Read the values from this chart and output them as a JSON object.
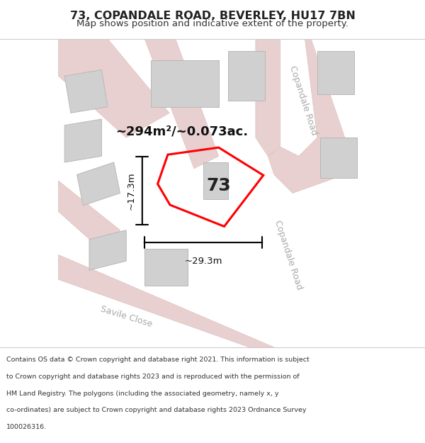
{
  "title": "73, COPANDALE ROAD, BEVERLEY, HU17 7BN",
  "subtitle": "Map shows position and indicative extent of the property.",
  "footer_lines": [
    "Contains OS data © Crown copyright and database right 2021. This information is subject",
    "to Crown copyright and database rights 2023 and is reproduced with the permission of",
    "HM Land Registry. The polygons (including the associated geometry, namely x, y",
    "co-ordinates) are subject to Crown copyright and database rights 2023 Ordnance Survey",
    "100026316."
  ],
  "map_bg": "#f0eeee",
  "title_bg": "#ffffff",
  "footer_bg": "#ffffff",
  "road_color": "#e8d0d0",
  "road_edge": "#e0c0c0",
  "building_color": "#d0d0d0",
  "building_edge": "#b8b8b8",
  "property_label": "73",
  "area_text": "~294m²/~0.073ac.",
  "dim_width": "~29.3m",
  "dim_height": "~17.3m",
  "road_label_copandale": "Copandale Road",
  "road_label_savile": "Savile Close"
}
